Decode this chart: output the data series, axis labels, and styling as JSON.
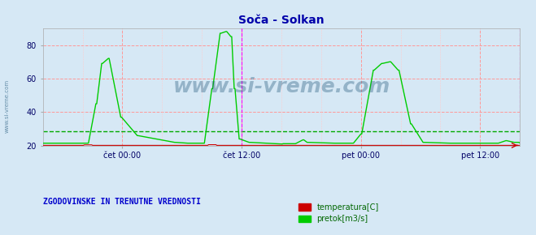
{
  "title": "Soča - Solkan",
  "title_color": "#0000aa",
  "bg_color": "#d6e8f5",
  "plot_bg_color": "#d6e8f5",
  "ylabel_left": "",
  "xlabel": "",
  "xlim": [
    0,
    576
  ],
  "ylim": [
    20,
    90
  ],
  "yticks": [
    20,
    40,
    60,
    80
  ],
  "xtick_labels": [
    "čet 00:00",
    "čet 12:00",
    "pet 00:00",
    "pet 12:00"
  ],
  "xtick_positions": [
    96,
    240,
    384,
    528
  ],
  "vline_positions": [
    240,
    576
  ],
  "vline_color": "#ff00ff",
  "hline_value": 28.5,
  "hline_color": "#00aa00",
  "temp_color": "#cc0000",
  "flow_color": "#00cc00",
  "watermark": "www.si-vreme.com",
  "watermark_color": "#1a5276",
  "watermark_alpha": 0.35,
  "legend_title": "ZGODOVINSKE IN TRENUTNE VREDNOSTI",
  "legend_title_color": "#0000cc",
  "legend_items": [
    "temperatura[C]",
    "pretok[m3/s]"
  ],
  "legend_colors": [
    "#cc0000",
    "#00cc00"
  ],
  "grid_color_major": "#ff9999",
  "grid_color_minor": "#dddddd",
  "sidebar_text": "www.si-vreme.com",
  "sidebar_color": "#1a5276"
}
